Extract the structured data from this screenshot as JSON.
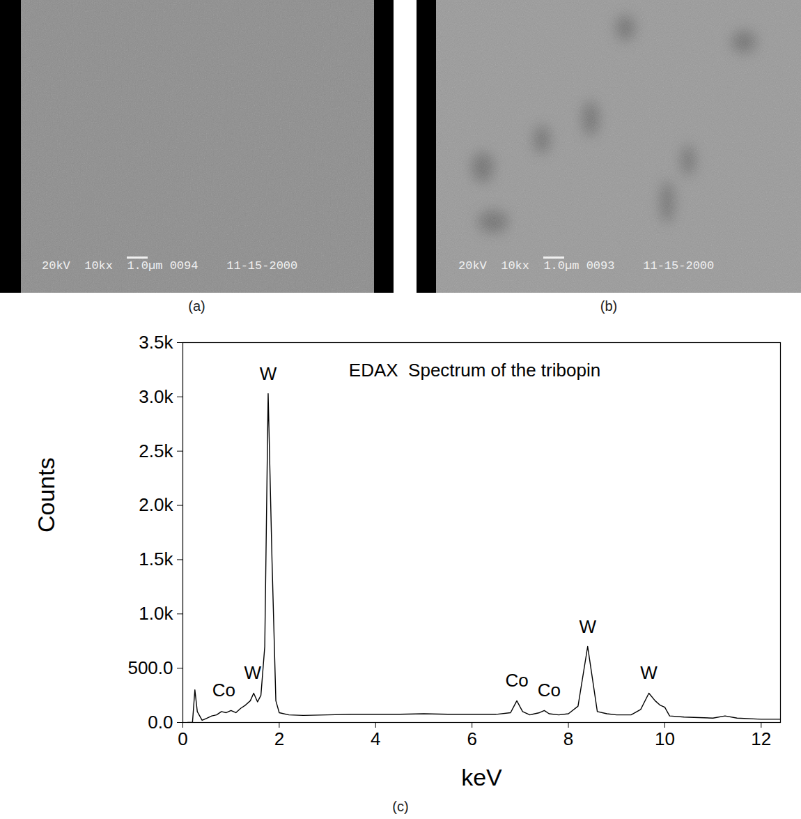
{
  "images": [
    {
      "label": "(a)",
      "info": "20kV  10kx  1.0µm 0094    11-15-2000"
    },
    {
      "label": "(b)",
      "info": "20kV  10kx  1.0µm 0093    11-15-2000"
    }
  ],
  "chart_data": {
    "type": "line",
    "title": "EDAX  Spectrum of the tribopin",
    "caption": "(c)",
    "x_label": "keV",
    "y_label": "Counts",
    "color": "#000000",
    "x": [
      0.1,
      0.2,
      0.25,
      0.3,
      0.4,
      0.5,
      0.6,
      0.7,
      0.8,
      0.9,
      1.0,
      1.1,
      1.2,
      1.3,
      1.4,
      1.47,
      1.55,
      1.62,
      1.7,
      1.77,
      1.85,
      1.93,
      2.0,
      2.2,
      2.5,
      3.0,
      3.5,
      4.0,
      4.5,
      5.0,
      5.5,
      6.0,
      6.5,
      6.8,
      6.93,
      7.05,
      7.2,
      7.4,
      7.5,
      7.6,
      7.8,
      8.0,
      8.2,
      8.4,
      8.5,
      8.6,
      8.8,
      9.0,
      9.3,
      9.5,
      9.67,
      9.8,
      9.9,
      10.0,
      10.1,
      10.4,
      11.0,
      11.25,
      11.5,
      12.0,
      12.4
    ],
    "values": [
      0,
      0,
      300,
      100,
      20,
      40,
      60,
      70,
      100,
      90,
      110,
      90,
      130,
      160,
      200,
      270,
      190,
      250,
      700,
      3030,
      1500,
      200,
      90,
      70,
      65,
      70,
      75,
      75,
      75,
      80,
      75,
      75,
      75,
      90,
      200,
      100,
      70,
      90,
      110,
      80,
      70,
      80,
      150,
      700,
      400,
      100,
      80,
      70,
      70,
      120,
      270,
      200,
      160,
      140,
      60,
      50,
      40,
      60,
      40,
      30,
      30
    ],
    "annotations": [
      {
        "text": "Co",
        "x": 0.85,
        "y": 110
      },
      {
        "text": "W",
        "x": 1.45,
        "y": 270
      },
      {
        "text": "W",
        "x": 1.77,
        "y": 3030
      },
      {
        "text": "Co",
        "x": 6.93,
        "y": 200
      },
      {
        "text": "Co",
        "x": 7.6,
        "y": 110
      },
      {
        "text": "W",
        "x": 8.4,
        "y": 700
      },
      {
        "text": "W",
        "x": 9.67,
        "y": 270
      }
    ],
    "xlim": [
      0,
      12.4
    ],
    "xticks": [
      0,
      2,
      4,
      6,
      8,
      10,
      12
    ],
    "ylim": [
      0,
      3500
    ],
    "yticks": [
      {
        "value": 0,
        "label": "0.0"
      },
      {
        "value": 500,
        "label": "500.0"
      },
      {
        "value": 1000,
        "label": "1.0k"
      },
      {
        "value": 1500,
        "label": "1.5k"
      },
      {
        "value": 2000,
        "label": "2.0k"
      },
      {
        "value": 2500,
        "label": "2.5k"
      },
      {
        "value": 3000,
        "label": "3.0k"
      },
      {
        "value": 3500,
        "label": "3.5k"
      }
    ],
    "grid": false
  }
}
